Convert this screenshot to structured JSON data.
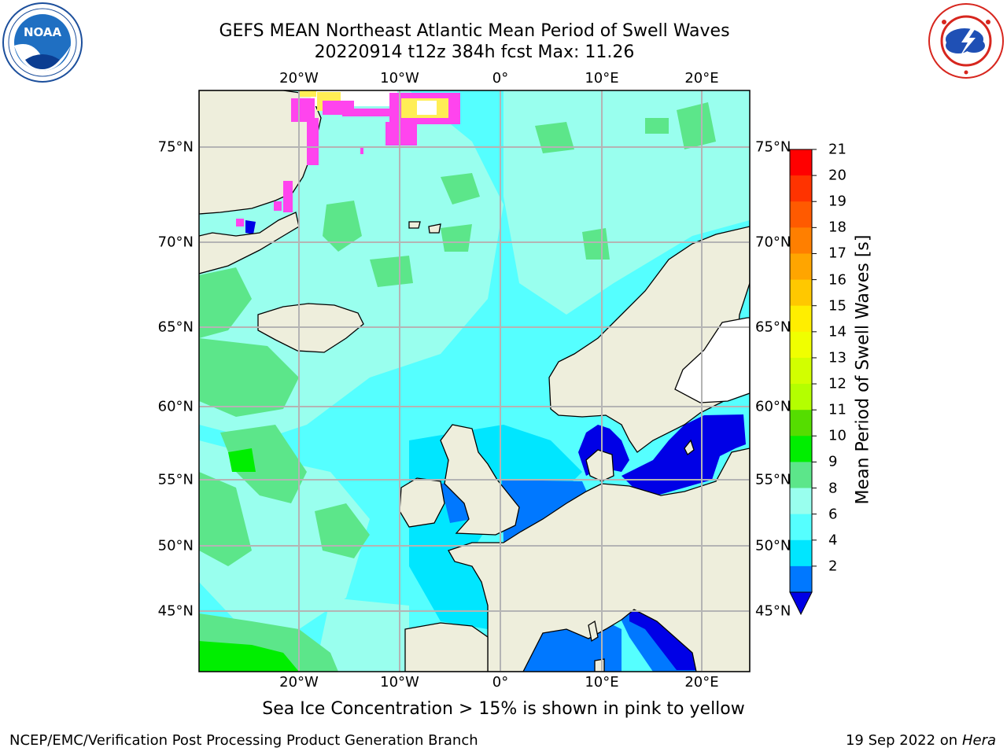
{
  "header": {
    "title_line1": "GEFS MEAN Northeast Atlantic Mean Period of Swell Waves",
    "title_line2": "20220914 t12z 384h fcst   Max: 11.26"
  },
  "logos": {
    "left": "NOAA",
    "left_ring": "NATIONAL OCEANIC AND ATMOSPHERIC ADMINISTRATION · U.S. DEPARTMENT OF COMMERCE",
    "right_ring": "NATIONAL WEATHER SERVICE"
  },
  "axes": {
    "lon_labels": [
      "20°W",
      "10°W",
      "0°",
      "10°E",
      "20°E"
    ],
    "lat_labels": [
      "75°N",
      "70°N",
      "65°N",
      "60°N",
      "55°N",
      "50°N",
      "45°N"
    ]
  },
  "colorbar": {
    "title": "Mean Period of Swell Waves [s]",
    "labels": [
      "21",
      "20",
      "19",
      "18",
      "17",
      "16",
      "15",
      "14",
      "13",
      "12",
      "11",
      "10",
      "9",
      "8",
      "6",
      "4",
      "2"
    ],
    "colors_top_to_bottom": [
      "#ff0000",
      "#ff3300",
      "#ff5a00",
      "#ff7f00",
      "#ffa500",
      "#ffc800",
      "#ffee00",
      "#f0ff00",
      "#d2ff00",
      "#b4ff00",
      "#55dd00",
      "#00ee00",
      "#5ce68a",
      "#99ffee",
      "#55ffff",
      "#00e6ff",
      "#0078ff"
    ],
    "under_color": "#0000e6"
  },
  "footer": {
    "note": "Sea Ice Concentration > 15% is shown in pink to yellow",
    "credit": "NCEP/EMC/Verification Post Processing Product Generation Branch",
    "date": "19 Sep 2022 on",
    "machine": "Hera"
  },
  "colors": {
    "land": "#eeeedc",
    "ocean_main": "#55ffff",
    "ocean_high": "#5ce68a",
    "ocean_low": "#0078ff",
    "enclosed_low": "#0000e6",
    "ice_pink": "#ff44ee",
    "ice_yellow": "#ffee55"
  }
}
